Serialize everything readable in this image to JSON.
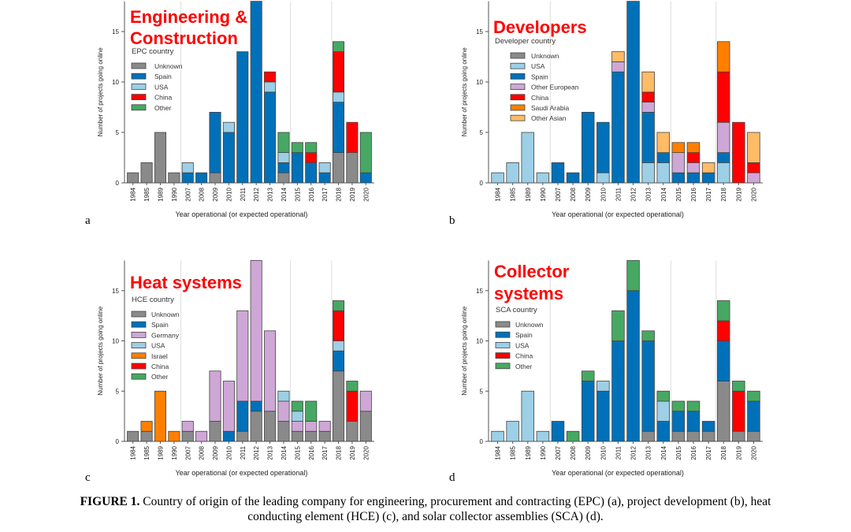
{
  "caption": {
    "label": "FIGURE 1.",
    "text": "Country of origin of the leading company for engineering, procurement and contracting (EPC) (a), project development (b), heat conducting element (HCE) (c), and solar collector assemblies (SCA) (d)."
  },
  "colors": {
    "Unknown": "#8a8a8a",
    "Spain": "#0071b9",
    "USA": "#9dcfe6",
    "China": "#ff0000",
    "Other": "#47a863",
    "Germany": "#cea7d6",
    "Other European": "#cea7d6",
    "Israel": "#ff7f00",
    "Saudi Arabia": "#ff7f00",
    "Other Asian": "#ffbb66",
    "title": "#ff0000"
  },
  "chart_data": [
    {
      "type": "bar",
      "stacked": true,
      "panel": "a",
      "title": "Engineering & Construction",
      "legend_title": "EPC country",
      "legend_placement": "top-left",
      "xlabel": "Year operational (or expected operational)",
      "ylabel": "Number of projects going online",
      "ylim": [
        0,
        18
      ],
      "yticks": [
        0,
        5,
        10,
        15
      ],
      "categories": [
        "1984",
        "1985",
        "1989",
        "1990",
        "2007",
        "2008",
        "2009",
        "2010",
        "2011",
        "2012",
        "2013",
        "2014",
        "2015",
        "2016",
        "2017",
        "2018",
        "2019",
        "2020"
      ],
      "series": [
        {
          "name": "Unknown",
          "values": [
            1,
            2,
            5,
            1,
            0,
            0,
            1,
            0,
            0,
            0,
            0,
            1,
            0,
            0,
            0,
            3,
            3,
            0
          ]
        },
        {
          "name": "Spain",
          "values": [
            0,
            0,
            0,
            0,
            1,
            1,
            6,
            5,
            13,
            18,
            9,
            1,
            3,
            2,
            1,
            5,
            0,
            1
          ]
        },
        {
          "name": "USA",
          "values": [
            0,
            0,
            0,
            0,
            1,
            0,
            0,
            1,
            0,
            0,
            1,
            1,
            0,
            0,
            1,
            1,
            0,
            0
          ]
        },
        {
          "name": "China",
          "values": [
            0,
            0,
            0,
            0,
            0,
            0,
            0,
            0,
            0,
            0,
            1,
            0,
            0,
            1,
            0,
            4,
            3,
            0
          ]
        },
        {
          "name": "Other",
          "values": [
            0,
            0,
            0,
            0,
            0,
            0,
            0,
            0,
            0,
            0,
            0,
            2,
            1,
            1,
            0,
            1,
            0,
            4
          ]
        }
      ]
    },
    {
      "type": "bar",
      "stacked": true,
      "panel": "b",
      "title": "Developers",
      "legend_title": "Developer country",
      "legend_placement": "top-left",
      "xlabel": "Year operational (or expected operational)",
      "ylabel": "Number of projects going online",
      "ylim": [
        0,
        18
      ],
      "yticks": [
        0,
        5,
        10,
        15
      ],
      "categories": [
        "1984",
        "1985",
        "1989",
        "1990",
        "2007",
        "2008",
        "2009",
        "2010",
        "2011",
        "2012",
        "2013",
        "2014",
        "2015",
        "2016",
        "2017",
        "2018",
        "2019",
        "2020"
      ],
      "series": [
        {
          "name": "Unknown",
          "values": [
            0,
            0,
            0,
            0,
            0,
            0,
            0,
            0,
            0,
            0,
            0,
            0,
            0,
            0,
            0,
            0,
            0,
            0
          ]
        },
        {
          "name": "USA",
          "values": [
            1,
            2,
            5,
            1,
            0,
            0,
            0,
            1,
            0,
            0,
            2,
            2,
            0,
            0,
            0,
            2,
            0,
            0
          ]
        },
        {
          "name": "Spain",
          "values": [
            0,
            0,
            0,
            0,
            2,
            1,
            7,
            5,
            11,
            18,
            5,
            1,
            1,
            1,
            1,
            1,
            0,
            0
          ]
        },
        {
          "name": "Other European",
          "values": [
            0,
            0,
            0,
            0,
            0,
            0,
            0,
            0,
            1,
            0,
            1,
            0,
            2,
            1,
            0,
            3,
            0,
            1
          ]
        },
        {
          "name": "China",
          "values": [
            0,
            0,
            0,
            0,
            0,
            0,
            0,
            0,
            0,
            0,
            1,
            0,
            0,
            1,
            0,
            5,
            6,
            1
          ]
        },
        {
          "name": "Saudi Arabia",
          "values": [
            0,
            0,
            0,
            0,
            0,
            0,
            0,
            0,
            0,
            0,
            0,
            0,
            1,
            1,
            0,
            3,
            0,
            0
          ]
        },
        {
          "name": "Other Asian",
          "values": [
            0,
            0,
            0,
            0,
            0,
            0,
            0,
            0,
            1,
            0,
            2,
            2,
            0,
            0,
            1,
            0,
            0,
            3
          ]
        }
      ]
    },
    {
      "type": "bar",
      "stacked": true,
      "panel": "c",
      "title": "Heat systems",
      "legend_title": "HCE country",
      "legend_placement": "top-left",
      "xlabel": "Year operational (or expected operational)",
      "ylabel": "Number of projects going online",
      "ylim": [
        0,
        18
      ],
      "yticks": [
        0,
        5,
        10,
        15
      ],
      "categories": [
        "1984",
        "1985",
        "1989",
        "1990",
        "2007",
        "2008",
        "2009",
        "2010",
        "2011",
        "2012",
        "2013",
        "2014",
        "2015",
        "2016",
        "2017",
        "2018",
        "2019",
        "2020"
      ],
      "series": [
        {
          "name": "Unknown",
          "values": [
            1,
            1,
            0,
            0,
            1,
            0,
            2,
            0,
            1,
            3,
            3,
            2,
            1,
            1,
            1,
            7,
            2,
            3
          ]
        },
        {
          "name": "Spain",
          "values": [
            0,
            0,
            0,
            0,
            0,
            0,
            0,
            1,
            3,
            1,
            0,
            0,
            0,
            0,
            0,
            2,
            0,
            0
          ]
        },
        {
          "name": "Germany",
          "values": [
            0,
            0,
            0,
            0,
            1,
            1,
            5,
            5,
            9,
            14,
            8,
            2,
            1,
            1,
            1,
            0,
            0,
            2
          ]
        },
        {
          "name": "USA",
          "values": [
            0,
            0,
            0,
            0,
            0,
            0,
            0,
            0,
            0,
            0,
            0,
            1,
            1,
            0,
            0,
            1,
            0,
            0
          ]
        },
        {
          "name": "Israel",
          "values": [
            0,
            1,
            5,
            1,
            0,
            0,
            0,
            0,
            0,
            0,
            0,
            0,
            0,
            0,
            0,
            0,
            0,
            0
          ]
        },
        {
          "name": "China",
          "values": [
            0,
            0,
            0,
            0,
            0,
            0,
            0,
            0,
            0,
            0,
            0,
            0,
            0,
            0,
            0,
            3,
            3,
            0
          ]
        },
        {
          "name": "Other",
          "values": [
            0,
            0,
            0,
            0,
            0,
            0,
            0,
            0,
            0,
            0,
            0,
            0,
            1,
            2,
            0,
            1,
            1,
            0
          ]
        }
      ]
    },
    {
      "type": "bar",
      "stacked": true,
      "panel": "d",
      "title": "Collector systems",
      "legend_title": "SCA country",
      "legend_placement": "top-left",
      "xlabel": "Year operational (or expected operational)",
      "ylabel": "Number of projects going online",
      "ylim": [
        0,
        18
      ],
      "yticks": [
        0,
        5,
        10,
        15
      ],
      "categories": [
        "1984",
        "1985",
        "1989",
        "1990",
        "2007",
        "2008",
        "2009",
        "2010",
        "2011",
        "2012",
        "2013",
        "2014",
        "2015",
        "2016",
        "2017",
        "2018",
        "2019",
        "2020"
      ],
      "series": [
        {
          "name": "Unknown",
          "values": [
            0,
            0,
            0,
            0,
            0,
            0,
            0,
            0,
            0,
            0,
            1,
            0,
            1,
            1,
            1,
            6,
            1,
            1
          ]
        },
        {
          "name": "Spain",
          "values": [
            0,
            0,
            0,
            0,
            2,
            0,
            6,
            5,
            10,
            15,
            9,
            2,
            2,
            2,
            1,
            4,
            0,
            3
          ]
        },
        {
          "name": "USA",
          "values": [
            1,
            2,
            5,
            1,
            0,
            0,
            0,
            1,
            0,
            0,
            0,
            2,
            0,
            0,
            0,
            0,
            0,
            0
          ]
        },
        {
          "name": "China",
          "values": [
            0,
            0,
            0,
            0,
            0,
            0,
            0,
            0,
            0,
            0,
            0,
            0,
            0,
            0,
            0,
            2,
            4,
            0
          ]
        },
        {
          "name": "Other",
          "values": [
            0,
            0,
            0,
            0,
            0,
            1,
            1,
            0,
            3,
            3,
            1,
            1,
            1,
            1,
            0,
            2,
            1,
            1
          ]
        }
      ]
    }
  ]
}
